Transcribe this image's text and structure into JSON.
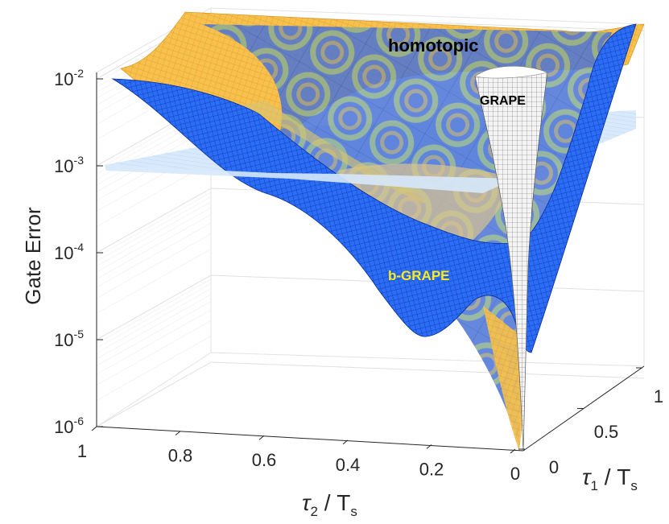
{
  "chart_data": {
    "type": "surface3d",
    "title": "",
    "zlabel": "Gate Error",
    "zscale": "log",
    "zlim": [
      1e-06,
      0.01
    ],
    "z_ticks": [
      {
        "base": "10",
        "exp": "-2"
      },
      {
        "base": "10",
        "exp": "-3"
      },
      {
        "base": "10",
        "exp": "-4"
      },
      {
        "base": "10",
        "exp": "-5"
      },
      {
        "base": "10",
        "exp": "-6"
      }
    ],
    "xlabel": {
      "symbol": "τ",
      "sub": "2",
      "rest": " / T",
      "rest_sub": "s"
    },
    "ylabel": {
      "symbol": "τ",
      "sub": "1",
      "rest": " / T",
      "rest_sub": "s"
    },
    "x_ticks": [
      "1",
      "0.8",
      "0.6",
      "0.4",
      "0.2",
      "0"
    ],
    "y_ticks": [
      "0",
      "0.5",
      "1"
    ],
    "xlim": [
      0,
      1
    ],
    "ylim": [
      0,
      1
    ],
    "grid": true,
    "series": [
      {
        "name": "homotopic",
        "color": "#f2b33d",
        "label_color": "#000000"
      },
      {
        "name": "GRAPE",
        "color": "#c8c8c8",
        "label_color": "#000000"
      },
      {
        "name": "b-GRAPE",
        "color": "#1f5cf0",
        "label_color": "#ffeb1a"
      }
    ],
    "reference_plane": {
      "z": 0.001,
      "color": "#bcd9f7"
    },
    "data_note_values": {
      "homotopic_min_approx": 1e-06,
      "b_grape_local_min_approx": 1.2e-05,
      "grape_min_approx": 1e-06
    }
  }
}
